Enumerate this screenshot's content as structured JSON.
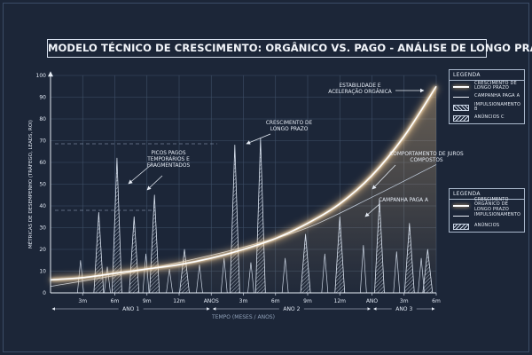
{
  "chart_data": {
    "type": "line",
    "title": "MODELO TÉCNICO DE CRESCIMENTO: ORGÂNICO VS. PAGO - ANÁLISE DE LONGO PRAZO",
    "xlabel": "TEMPO (MESES / ANOS)",
    "ylabel": "MÉTRICAS DE DESEMPENHO (TRÁFEGO, LEADS, ROI)",
    "ylim": [
      0,
      100
    ],
    "xlim": [
      0,
      36
    ],
    "yticks": [
      "0",
      "10",
      "20",
      "30",
      "40",
      "50",
      "60",
      "70",
      "80",
      "90",
      "100"
    ],
    "xticks": [
      {
        "x": 3,
        "label": "3m"
      },
      {
        "x": 6,
        "label": "6m"
      },
      {
        "x": 9,
        "label": "9m"
      },
      {
        "x": 12,
        "label": "12m"
      },
      {
        "x": 15,
        "label": "ANOS"
      },
      {
        "x": 18,
        "label": "3m"
      },
      {
        "x": 21,
        "label": "6m"
      },
      {
        "x": 24,
        "label": "9m"
      },
      {
        "x": 27,
        "label": "12m"
      },
      {
        "x": 30,
        "label": "ANO"
      },
      {
        "x": 33,
        "label": "3m"
      },
      {
        "x": 36,
        "label": "6m"
      }
    ],
    "year_spans": [
      {
        "from": 0,
        "to": 15,
        "label": "ANO 1"
      },
      {
        "from": 15,
        "to": 30,
        "label": "ANO 2"
      },
      {
        "from": 30,
        "to": 36,
        "label": "ANO 3"
      }
    ],
    "grid": true,
    "series": [
      {
        "name": "CRESCIMENTO ORGÂNICO DE LONGO PRAZO",
        "style": "glow-curve",
        "x": [
          0,
          3,
          6,
          9,
          12,
          15,
          18,
          21,
          24,
          27,
          30,
          33,
          36
        ],
        "values": [
          6,
          7,
          9,
          11,
          13,
          16,
          20,
          25,
          32,
          41,
          54,
          72,
          95
        ]
      },
      {
        "name": "IMPULSIONAMENTO",
        "style": "thin-line",
        "x": [
          0,
          6,
          12,
          18,
          24,
          30,
          36
        ],
        "values": [
          3,
          8,
          14,
          21,
          30,
          44,
          59
        ]
      },
      {
        "name": "CAMPANHA PAGA A",
        "style": "hatched-spikes",
        "spikes": [
          {
            "x": 4.5,
            "value": 37
          },
          {
            "x": 6.2,
            "value": 62
          },
          {
            "x": 7.8,
            "value": 35
          },
          {
            "x": 9.7,
            "value": 45
          },
          {
            "x": 12.5,
            "value": 20
          },
          {
            "x": 17.2,
            "value": 68
          },
          {
            "x": 19.6,
            "value": 71
          },
          {
            "x": 23.8,
            "value": 27
          },
          {
            "x": 27.0,
            "value": 35
          },
          {
            "x": 30.7,
            "value": 43
          },
          {
            "x": 33.5,
            "value": 32
          },
          {
            "x": 35.2,
            "value": 20
          }
        ]
      },
      {
        "name": "ANÚNCIOS",
        "style": "thin-spikes",
        "spikes": [
          {
            "x": 2.8,
            "value": 15
          },
          {
            "x": 5.3,
            "value": 12
          },
          {
            "x": 8.9,
            "value": 18
          },
          {
            "x": 11.1,
            "value": 11
          },
          {
            "x": 13.9,
            "value": 13
          },
          {
            "x": 16.2,
            "value": 16
          },
          {
            "x": 18.7,
            "value": 14
          },
          {
            "x": 21.9,
            "value": 16
          },
          {
            "x": 25.6,
            "value": 18
          },
          {
            "x": 29.2,
            "value": 22
          },
          {
            "x": 32.3,
            "value": 19
          },
          {
            "x": 34.6,
            "value": 16
          }
        ]
      }
    ],
    "annotations": [
      {
        "text": "PICOS PAGOS TEMPORÁRIOS E FRAGMENTADOS"
      },
      {
        "text": "CRESCIMENTO DE LONGO PRAZO"
      },
      {
        "text": "ESTABILIDADE E ACELERAÇÃO ORGÂNICA"
      },
      {
        "text": "COMPORTAMENTO DE JUROS COMPOSTOS"
      },
      {
        "text": "CAMPANHA PAGA A"
      }
    ],
    "legends": [
      {
        "title": "LEGENDA",
        "items": [
          {
            "swatch": "glow",
            "label": "CRESCIMENTO DE LONGO PRAZO"
          },
          {
            "swatch": "thin",
            "label": "CAMPANHA PAGA A"
          },
          {
            "swatch": "hatch",
            "label": "IMPULSIONAMENTO B"
          },
          {
            "swatch": "hatch2",
            "label": "ANÚNCIOS C"
          }
        ]
      },
      {
        "title": "LEGENDA",
        "items": [
          {
            "swatch": "glow",
            "label": "CRESCIMENTO ORGÂNICO DE LONGO PRAZO"
          },
          {
            "swatch": "thin",
            "label": "IMPULSIONAMENTO"
          },
          {
            "swatch": "hatch2",
            "label": "ANÚNCIOS"
          }
        ]
      }
    ]
  },
  "colors": {
    "background": "#1c2638",
    "grid": "#3f5068",
    "ink": "#dfe6f1",
    "glow": "#f5c98a"
  }
}
